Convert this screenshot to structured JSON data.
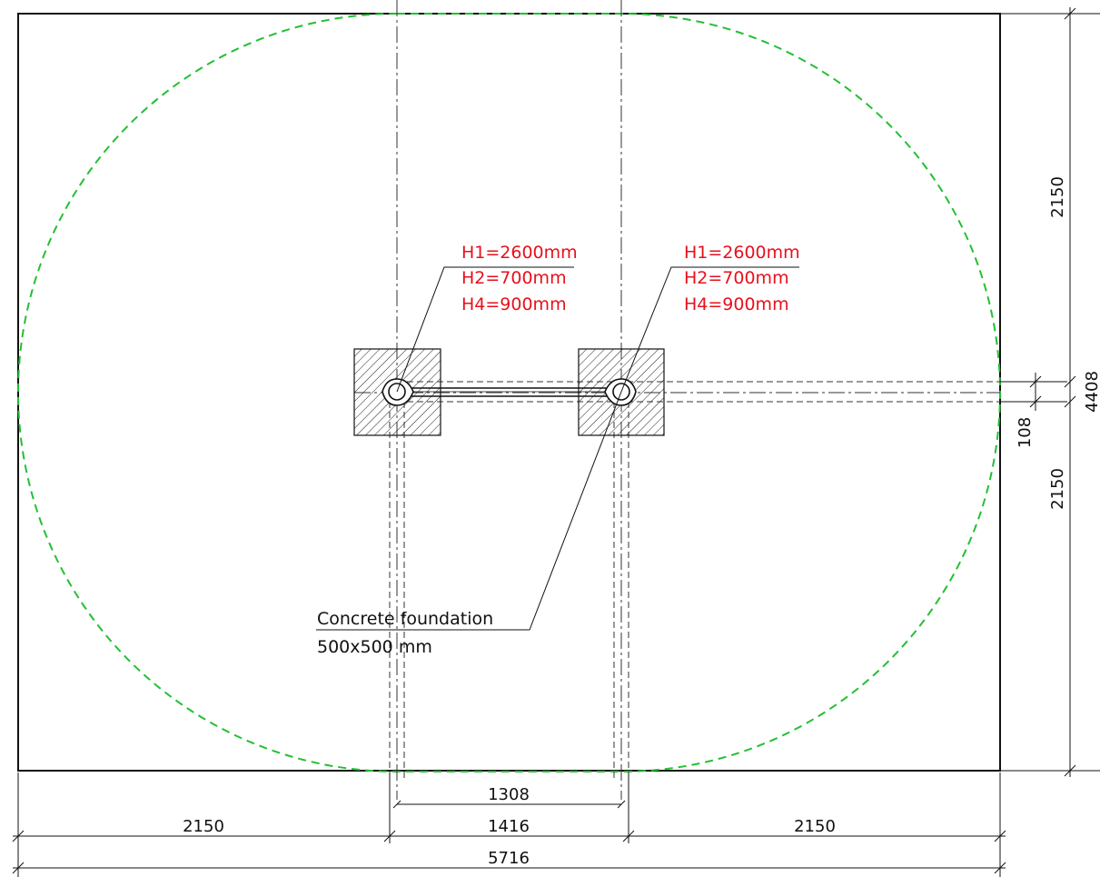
{
  "colors": {
    "line": "#111111",
    "safety_zone": "#22c033",
    "label_red": "#e8101c",
    "hatch": "#222222"
  },
  "posts": [
    {
      "h1": "H1=2600mm",
      "h2": "H2=700mm",
      "h4": "H4=900mm"
    },
    {
      "h1": "H1=2600mm",
      "h2": "H2=700mm",
      "h4": "H4=900mm"
    }
  ],
  "foundation": {
    "line1": "Concrete foundation",
    "line2": "500x500 mm"
  },
  "dimensions": {
    "bottom_inner": "1308",
    "bottom_left": "2150",
    "bottom_mid": "1416",
    "bottom_right": "2150",
    "bottom_total": "5716",
    "right_top": "2150",
    "right_small": "108",
    "right_bottom": "2150",
    "right_total": "4408"
  }
}
